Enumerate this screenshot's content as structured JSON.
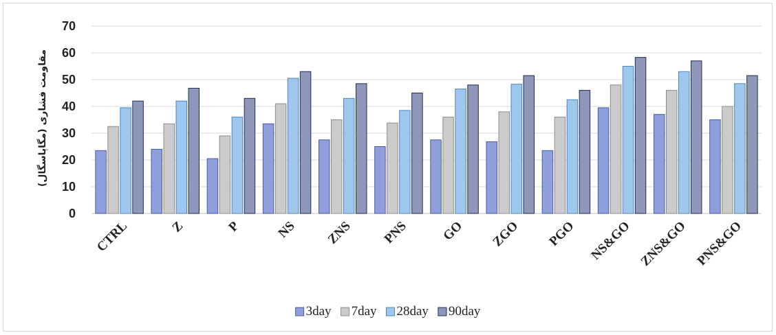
{
  "chart_data": {
    "type": "bar",
    "title": "",
    "xlabel": "",
    "ylabel": "مقاومت فشاری (مگاپاسگال)",
    "ylim": [
      0,
      70
    ],
    "yticks": [
      0,
      10,
      20,
      30,
      40,
      50,
      60,
      70
    ],
    "grid": true,
    "legend_position": "bottom",
    "categories": [
      "CTRL",
      "Z",
      "P",
      "NS",
      "ZNS",
      "PNS",
      "GO",
      "ZGO",
      "PGO",
      "NS&GO",
      "ZNS&GO",
      "PNS&GO"
    ],
    "series": [
      {
        "name": "3day",
        "color": "#8e9fdc",
        "stroke": "#4a5aa8",
        "values": [
          23.5,
          24,
          20.5,
          33.5,
          27.5,
          25,
          27.5,
          26.8,
          23.5,
          39.5,
          37,
          35
        ]
      },
      {
        "name": "7day",
        "color": "#cbcbcb",
        "stroke": "#8c8c8c",
        "values": [
          32.5,
          33.5,
          29,
          41,
          35,
          33.8,
          36,
          38,
          36,
          48,
          46,
          40
        ]
      },
      {
        "name": "28day",
        "color": "#9fc7ee",
        "stroke": "#4f86c0",
        "values": [
          39.5,
          42,
          36,
          50.5,
          43,
          38.5,
          46.5,
          48.3,
          42.5,
          55,
          53,
          48.5
        ]
      },
      {
        "name": "90day",
        "color": "#8f97b8",
        "stroke": "#1f2c5c",
        "values": [
          42,
          46.8,
          43,
          53,
          48.5,
          45,
          48,
          51.5,
          46,
          58.3,
          57,
          51.5
        ]
      }
    ]
  }
}
